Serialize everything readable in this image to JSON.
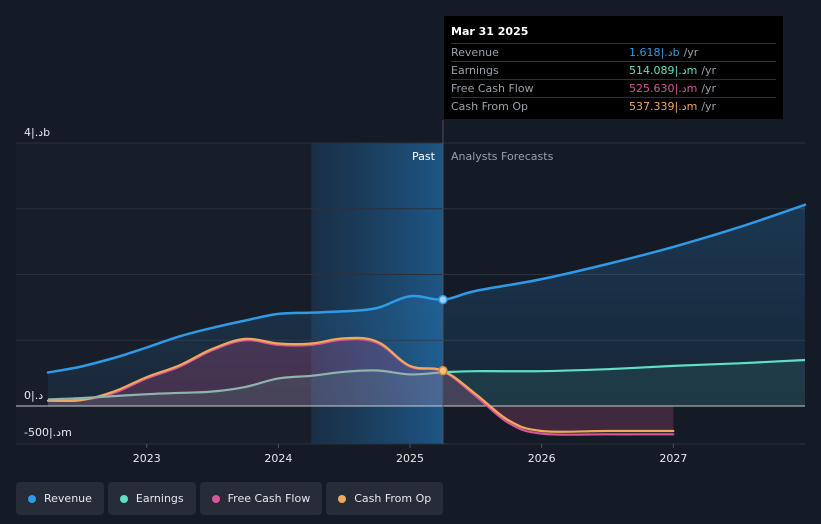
{
  "tooltip": {
    "date": "Mar 31 2025",
    "rows": [
      {
        "label": "Revenue",
        "value": "1.618|.دb",
        "unit": "/yr",
        "color": "#2f9be8"
      },
      {
        "label": "Earnings",
        "value": "514.089|.دm",
        "unit": "/yr",
        "color": "#5fe0c5"
      },
      {
        "label": "Free Cash Flow",
        "value": "525.630|.دm",
        "unit": "/yr",
        "color": "#d9559a"
      },
      {
        "label": "Cash From Op",
        "value": "537.339|.دm",
        "unit": "/yr",
        "color": "#f0a95a"
      }
    ]
  },
  "legend": [
    {
      "label": "Revenue",
      "color": "#2f9be8"
    },
    {
      "label": "Earnings",
      "color": "#5fe0c5"
    },
    {
      "label": "Free Cash Flow",
      "color": "#d9559a"
    },
    {
      "label": "Cash From Op",
      "color": "#f0a95a"
    }
  ],
  "chart_data": {
    "type": "line",
    "title": "",
    "xlabel": "",
    "ylabel": "",
    "xlim": [
      2022.25,
      2028.0
    ],
    "ylim": [
      -500,
      4000
    ],
    "y_tick_labels": [
      {
        "value": 4000,
        "label": "4|.دb"
      },
      {
        "value": 0,
        "label": "0|.د"
      },
      {
        "value": -500,
        "label": "-500|.دm"
      }
    ],
    "x_ticks": [
      {
        "value": 2023,
        "label": "2023"
      },
      {
        "value": 2024,
        "label": "2024"
      },
      {
        "value": 2025,
        "label": "2025"
      },
      {
        "value": 2026,
        "label": "2026"
      },
      {
        "value": 2027,
        "label": "2027"
      }
    ],
    "regions": {
      "divider": 2025.25,
      "highlight_start": 2024.25,
      "past_label": "Past",
      "forecast_label": "Analysts Forecasts"
    },
    "series": [
      {
        "name": "Revenue",
        "color": "#2f9be8",
        "points": [
          [
            2022.25,
            510
          ],
          [
            2022.5,
            600
          ],
          [
            2022.75,
            730
          ],
          [
            2023.0,
            890
          ],
          [
            2023.25,
            1060
          ],
          [
            2023.5,
            1190
          ],
          [
            2023.75,
            1300
          ],
          [
            2024.0,
            1400
          ],
          [
            2024.25,
            1420
          ],
          [
            2024.5,
            1440
          ],
          [
            2024.75,
            1490
          ],
          [
            2025.0,
            1670
          ],
          [
            2025.25,
            1618
          ],
          [
            2025.5,
            1750
          ],
          [
            2026.0,
            1930
          ],
          [
            2026.5,
            2160
          ],
          [
            2027.0,
            2420
          ],
          [
            2027.5,
            2720
          ],
          [
            2028.0,
            3060
          ]
        ]
      },
      {
        "name": "Earnings",
        "color": "#5fe0c5",
        "points": [
          [
            2022.25,
            100
          ],
          [
            2022.5,
            120
          ],
          [
            2022.75,
            150
          ],
          [
            2023.0,
            180
          ],
          [
            2023.25,
            200
          ],
          [
            2023.5,
            220
          ],
          [
            2023.75,
            290
          ],
          [
            2024.0,
            420
          ],
          [
            2024.25,
            460
          ],
          [
            2024.5,
            520
          ],
          [
            2024.75,
            540
          ],
          [
            2025.0,
            480
          ],
          [
            2025.25,
            514
          ],
          [
            2025.5,
            530
          ],
          [
            2026.0,
            530
          ],
          [
            2026.5,
            560
          ],
          [
            2027.0,
            610
          ],
          [
            2027.5,
            650
          ],
          [
            2028.0,
            700
          ]
        ]
      },
      {
        "name": "Free Cash Flow",
        "color": "#d9559a",
        "points": [
          [
            2022.25,
            80
          ],
          [
            2022.5,
            90
          ],
          [
            2022.75,
            200
          ],
          [
            2023.0,
            420
          ],
          [
            2023.25,
            600
          ],
          [
            2023.5,
            850
          ],
          [
            2023.75,
            1000
          ],
          [
            2024.0,
            930
          ],
          [
            2024.25,
            930
          ],
          [
            2024.5,
            1010
          ],
          [
            2024.75,
            960
          ],
          [
            2025.0,
            600
          ],
          [
            2025.25,
            525.63
          ],
          [
            2025.5,
            150
          ],
          [
            2025.75,
            -260
          ],
          [
            2026.0,
            -420
          ],
          [
            2026.5,
            -430
          ],
          [
            2027.0,
            -430
          ]
        ]
      },
      {
        "name": "Cash From Op",
        "color": "#f0a95a",
        "points": [
          [
            2022.25,
            80
          ],
          [
            2022.5,
            90
          ],
          [
            2022.75,
            220
          ],
          [
            2023.0,
            440
          ],
          [
            2023.25,
            620
          ],
          [
            2023.5,
            870
          ],
          [
            2023.75,
            1020
          ],
          [
            2024.0,
            950
          ],
          [
            2024.25,
            950
          ],
          [
            2024.5,
            1030
          ],
          [
            2024.75,
            980
          ],
          [
            2025.0,
            610
          ],
          [
            2025.25,
            537.339
          ],
          [
            2025.5,
            180
          ],
          [
            2025.75,
            -220
          ],
          [
            2026.0,
            -380
          ],
          [
            2026.5,
            -380
          ],
          [
            2027.0,
            -380
          ]
        ]
      }
    ]
  }
}
